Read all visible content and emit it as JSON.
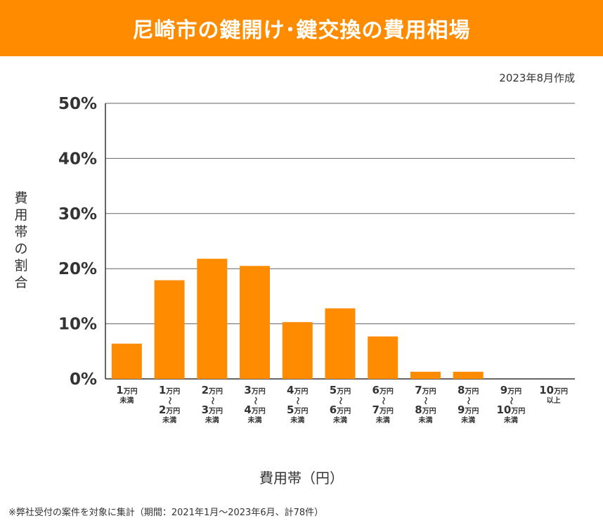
{
  "header": {
    "title": "尼崎市の鍵開け･鍵交換の費用相場"
  },
  "date_note": "2023年8月作成",
  "footnote": "※弊社受付の案件を対象に集計（期間：2021年1月～2023年6月、計78件）",
  "colors": {
    "header": "#ff8c00",
    "bar": "#ff8c00",
    "grid": "#555555"
  },
  "chart_data": {
    "type": "bar",
    "title": "",
    "xlabel": "費用帯（円）",
    "ylabel": "費用帯の割合",
    "ylim": [
      0,
      50
    ],
    "yticks": [
      "0%",
      "10%",
      "20%",
      "30%",
      "40%",
      "50%"
    ],
    "grid": true,
    "categories": [
      [
        "1万円",
        "未満"
      ],
      [
        "1万円",
        "～",
        "2万円",
        "未満"
      ],
      [
        "2万円",
        "～",
        "3万円",
        "未満"
      ],
      [
        "3万円",
        "～",
        "4万円",
        "未満"
      ],
      [
        "4万円",
        "～",
        "5万円",
        "未満"
      ],
      [
        "5万円",
        "～",
        "6万円",
        "未満"
      ],
      [
        "6万円",
        "～",
        "7万円",
        "未満"
      ],
      [
        "7万円",
        "～",
        "8万円",
        "未満"
      ],
      [
        "8万円",
        "～",
        "9万円",
        "未満"
      ],
      [
        "9万円",
        "～",
        "10万円",
        "未満"
      ],
      [
        "10万円",
        "以上"
      ]
    ],
    "values": [
      6.4,
      17.9,
      21.8,
      20.5,
      10.3,
      12.8,
      7.7,
      1.3,
      1.3,
      0,
      0
    ]
  }
}
